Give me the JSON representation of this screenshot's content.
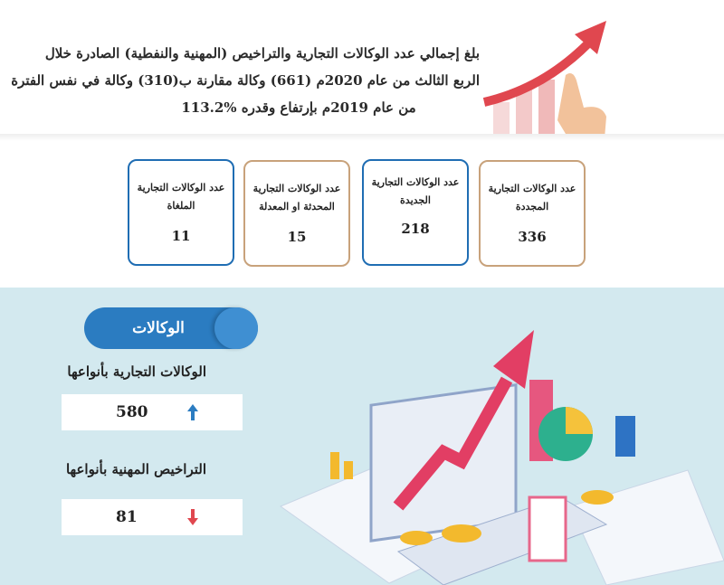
{
  "header": {
    "intro_lines": [
      "بلغ إجمالي عدد الوكالات التجارية والتراخيص (المهنية والنفطية) الصادرة خلال",
      "الربع الثالث من عام 2020م (661) وكالة مقارنة ب(310) وكالة في نفس الفترة",
      "من عام 2019م بإرتفاع وقدره"
    ],
    "intro_highlight": "113.2%"
  },
  "cards": [
    {
      "label": "عدد الوكالات التجارية المجددة",
      "value": "336"
    },
    {
      "label": "عدد الوكالات التجارية الجديدة",
      "value": "218"
    },
    {
      "label": "عدد الوكالات التجارية المحدثة او المعدلة",
      "value": "15"
    },
    {
      "label": "عدد الوكالات التجارية الملغاة",
      "value": "11"
    }
  ],
  "section": {
    "title": "الوكالات",
    "items": [
      {
        "label": "الوكالات التجارية بأنواعها",
        "value": "580"
      },
      {
        "label": "التراخيص المهنية بأنواعها",
        "value": "81"
      }
    ]
  }
}
